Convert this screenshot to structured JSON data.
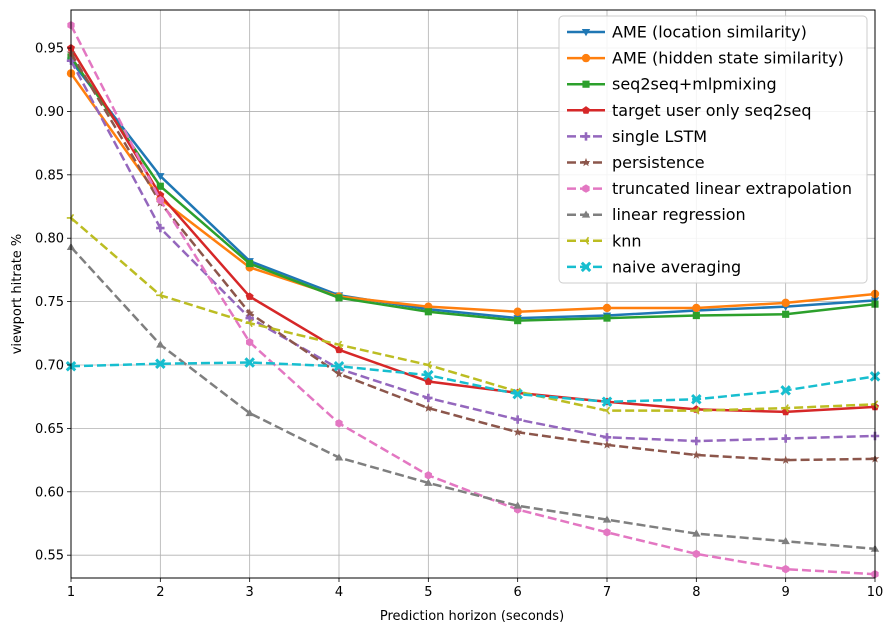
{
  "chart_data": {
    "type": "line",
    "title": "",
    "xlabel": "Prediction horizon (seconds)",
    "ylabel": "viewport hitrate %",
    "xlim": [
      1,
      10
    ],
    "ylim": [
      0.532,
      0.98
    ],
    "grid": true,
    "legend_position": "top-right",
    "x": [
      1,
      2,
      3,
      4,
      5,
      6,
      7,
      8,
      9,
      10
    ],
    "x_ticks": [
      "1",
      "2",
      "3",
      "4",
      "5",
      "6",
      "7",
      "8",
      "9",
      "10"
    ],
    "y_ticks": [
      0.55,
      0.6,
      0.65,
      0.7,
      0.75,
      0.8,
      0.85,
      0.9,
      0.95
    ],
    "y_tick_labels": [
      "0.55",
      "0.60",
      "0.65",
      "0.70",
      "0.75",
      "0.80",
      "0.85",
      "0.90",
      "0.95"
    ],
    "series": [
      {
        "name": "AME (location similarity)",
        "color": "#1f77b4",
        "dash": "solid",
        "marker": "triangle-down",
        "values": [
          0.94,
          0.849,
          0.782,
          0.755,
          0.744,
          0.737,
          0.739,
          0.743,
          0.746,
          0.751
        ]
      },
      {
        "name": "AME (hidden state similarity)",
        "color": "#ff7f0e",
        "dash": "solid",
        "marker": "circle",
        "values": [
          0.93,
          0.831,
          0.777,
          0.754,
          0.746,
          0.742,
          0.745,
          0.745,
          0.749,
          0.756
        ]
      },
      {
        "name": "seq2seq+mlpmixing",
        "color": "#2ca02c",
        "dash": "solid",
        "marker": "square",
        "values": [
          0.943,
          0.841,
          0.78,
          0.753,
          0.742,
          0.735,
          0.737,
          0.739,
          0.74,
          0.748
        ]
      },
      {
        "name": "target user only seq2seq",
        "color": "#d62728",
        "dash": "solid",
        "marker": "pentagon",
        "values": [
          0.95,
          0.834,
          0.754,
          0.712,
          0.687,
          0.678,
          0.671,
          0.665,
          0.663,
          0.667
        ]
      },
      {
        "name": "single LSTM",
        "color": "#9467bd",
        "dash": "dashed",
        "marker": "plus",
        "values": [
          0.94,
          0.808,
          0.737,
          0.697,
          0.674,
          0.657,
          0.643,
          0.64,
          0.642,
          0.644
        ]
      },
      {
        "name": "persistence",
        "color": "#8c564b",
        "dash": "dashed",
        "marker": "star",
        "values": [
          0.946,
          0.828,
          0.741,
          0.693,
          0.666,
          0.647,
          0.637,
          0.629,
          0.625,
          0.626
        ]
      },
      {
        "name": "truncated linear extrapolation",
        "color": "#e377c2",
        "dash": "dashed",
        "marker": "hexagon",
        "values": [
          0.968,
          0.83,
          0.718,
          0.654,
          0.613,
          0.586,
          0.568,
          0.551,
          0.539,
          0.535
        ]
      },
      {
        "name": "linear regression",
        "color": "#7f7f7f",
        "dash": "dashed",
        "marker": "triangle-up",
        "values": [
          0.793,
          0.716,
          0.662,
          0.627,
          0.607,
          0.589,
          0.578,
          0.567,
          0.561,
          0.555
        ]
      },
      {
        "name": "knn",
        "color": "#bcbd22",
        "dash": "dashed",
        "marker": "tri-left",
        "values": [
          0.816,
          0.755,
          0.733,
          0.716,
          0.7,
          0.679,
          0.664,
          0.664,
          0.666,
          0.669
        ]
      },
      {
        "name": "naive averaging",
        "color": "#17becf",
        "dash": "dashed",
        "marker": "x",
        "values": [
          0.699,
          0.701,
          0.702,
          0.699,
          0.692,
          0.677,
          0.671,
          0.673,
          0.68,
          0.691
        ]
      }
    ]
  }
}
